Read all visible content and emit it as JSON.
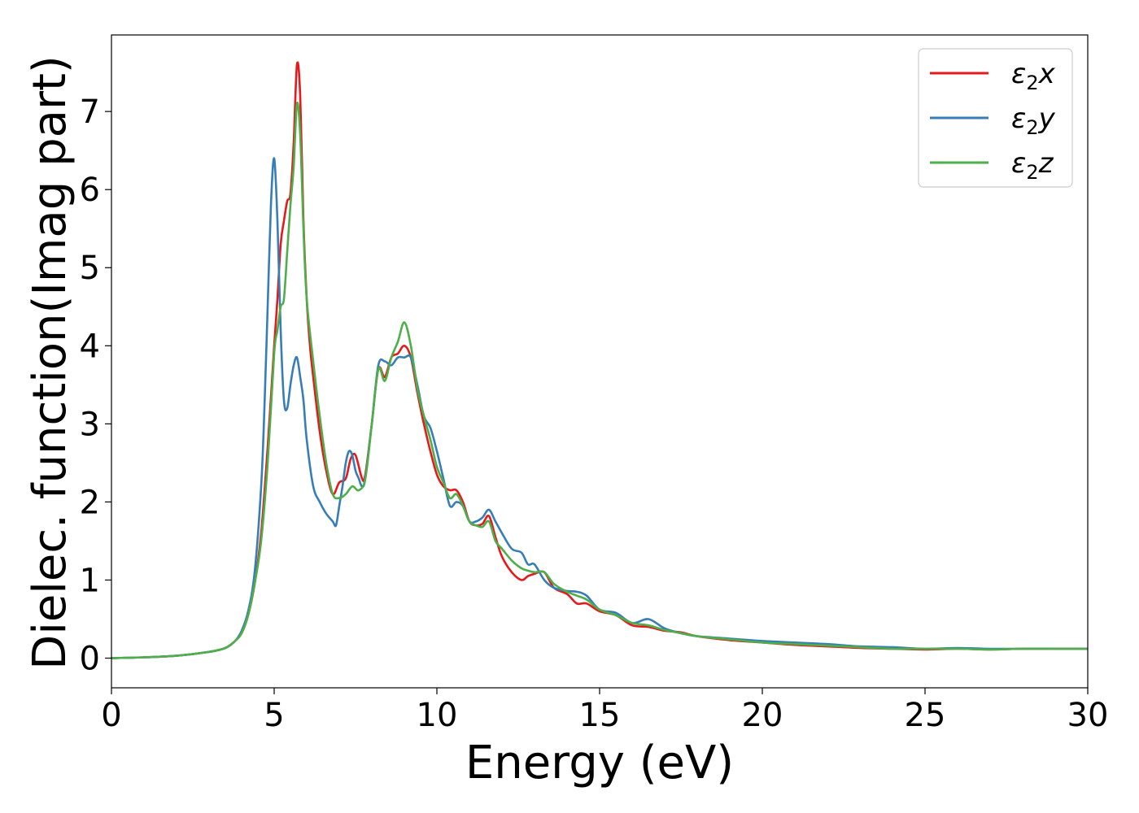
{
  "chart_data": {
    "type": "line",
    "title": "",
    "xlabel": "Energy (eV)",
    "ylabel": "Dielec. function(Imag part)",
    "xlim": [
      0,
      30
    ],
    "ylim": [
      -0.38,
      7.98
    ],
    "xticks": [
      0,
      5,
      10,
      15,
      20,
      25,
      30
    ],
    "yticks": [
      0,
      1,
      2,
      3,
      4,
      5,
      6,
      7
    ],
    "grid": false,
    "legend_position": "top-right",
    "series": [
      {
        "name": "ε2x",
        "legend": {
          "base": "ε",
          "sub": "2",
          "axis": "x"
        },
        "color": "#e41a1c",
        "x": [
          0,
          1,
          2,
          3,
          3.5,
          3.8,
          4.0,
          4.2,
          4.4,
          4.6,
          4.8,
          5.0,
          5.1,
          5.2,
          5.3,
          5.4,
          5.5,
          5.6,
          5.7,
          5.8,
          5.9,
          6.0,
          6.1,
          6.2,
          6.4,
          6.6,
          6.8,
          7.0,
          7.2,
          7.35,
          7.5,
          7.7,
          7.8,
          8.0,
          8.2,
          8.4,
          8.6,
          8.8,
          9.0,
          9.2,
          9.4,
          9.6,
          9.8,
          10.0,
          10.2,
          10.4,
          10.6,
          10.8,
          11.0,
          11.2,
          11.4,
          11.6,
          11.8,
          12.0,
          12.3,
          12.6,
          12.8,
          13.0,
          13.3,
          13.6,
          14.0,
          14.3,
          14.6,
          15.0,
          15.5,
          16.0,
          16.5,
          17.0,
          17.5,
          18,
          19,
          20,
          21,
          22,
          23,
          24,
          25,
          26,
          27,
          28,
          29,
          30
        ],
        "y": [
          0.0,
          0.01,
          0.03,
          0.08,
          0.13,
          0.22,
          0.32,
          0.55,
          0.95,
          1.6,
          2.7,
          4.0,
          4.6,
          5.3,
          5.6,
          5.85,
          5.95,
          6.6,
          7.6,
          7.2,
          5.6,
          4.6,
          4.0,
          3.6,
          2.9,
          2.4,
          2.1,
          2.25,
          2.3,
          2.55,
          2.6,
          2.3,
          2.35,
          3.0,
          3.7,
          3.6,
          3.85,
          3.9,
          4.0,
          3.85,
          3.4,
          3.0,
          2.65,
          2.35,
          2.2,
          2.15,
          2.15,
          2.0,
          1.75,
          1.7,
          1.72,
          1.82,
          1.55,
          1.3,
          1.1,
          1.0,
          1.05,
          1.08,
          1.1,
          0.9,
          0.82,
          0.7,
          0.7,
          0.6,
          0.55,
          0.42,
          0.4,
          0.35,
          0.33,
          0.28,
          0.23,
          0.2,
          0.17,
          0.15,
          0.13,
          0.12,
          0.11,
          0.12,
          0.11,
          0.12,
          0.12,
          0.12
        ]
      },
      {
        "name": "ε2y",
        "legend": {
          "base": "ε",
          "sub": "2",
          "axis": "y"
        },
        "color": "#377eb8",
        "x": [
          0,
          1,
          2,
          3,
          3.5,
          3.8,
          4.0,
          4.2,
          4.4,
          4.6,
          4.7,
          4.8,
          4.9,
          5.0,
          5.1,
          5.2,
          5.3,
          5.4,
          5.5,
          5.6,
          5.7,
          5.8,
          5.9,
          6.0,
          6.2,
          6.4,
          6.6,
          6.8,
          6.9,
          7.0,
          7.1,
          7.2,
          7.3,
          7.4,
          7.5,
          7.6,
          7.7,
          7.8,
          8.0,
          8.2,
          8.4,
          8.6,
          8.8,
          9.0,
          9.2,
          9.4,
          9.6,
          9.8,
          10.0,
          10.2,
          10.4,
          10.6,
          10.8,
          11.0,
          11.2,
          11.4,
          11.6,
          11.8,
          12.0,
          12.3,
          12.6,
          12.8,
          13.0,
          13.3,
          13.6,
          14.0,
          14.3,
          14.6,
          15.0,
          15.5,
          16.0,
          16.5,
          17.0,
          17.5,
          18,
          19,
          20,
          21,
          22,
          23,
          24,
          25,
          26,
          27,
          28,
          29,
          30
        ],
        "y": [
          0.0,
          0.01,
          0.03,
          0.08,
          0.13,
          0.22,
          0.35,
          0.6,
          1.1,
          2.2,
          3.2,
          4.5,
          5.8,
          6.4,
          5.6,
          4.2,
          3.3,
          3.2,
          3.5,
          3.75,
          3.85,
          3.6,
          3.3,
          2.8,
          2.2,
          2.0,
          1.85,
          1.75,
          1.7,
          1.95,
          2.2,
          2.5,
          2.65,
          2.6,
          2.4,
          2.3,
          2.2,
          2.3,
          3.0,
          3.75,
          3.8,
          3.75,
          3.85,
          3.85,
          3.85,
          3.5,
          3.1,
          2.95,
          2.65,
          2.3,
          1.95,
          2.0,
          1.95,
          1.75,
          1.75,
          1.8,
          1.9,
          1.75,
          1.6,
          1.4,
          1.35,
          1.2,
          1.2,
          1.0,
          0.9,
          0.86,
          0.85,
          0.8,
          0.62,
          0.58,
          0.45,
          0.5,
          0.38,
          0.32,
          0.28,
          0.25,
          0.22,
          0.2,
          0.18,
          0.15,
          0.14,
          0.12,
          0.13,
          0.12,
          0.12,
          0.12,
          0.12
        ]
      },
      {
        "name": "ε2z",
        "legend": {
          "base": "ε",
          "sub": "2",
          "axis": "z"
        },
        "color": "#4daf4a",
        "x": [
          0,
          1,
          2,
          3,
          3.5,
          3.8,
          4.0,
          4.2,
          4.4,
          4.6,
          4.8,
          5.0,
          5.1,
          5.2,
          5.3,
          5.4,
          5.5,
          5.6,
          5.7,
          5.8,
          5.9,
          6.0,
          6.2,
          6.4,
          6.6,
          6.8,
          7.0,
          7.2,
          7.4,
          7.6,
          7.8,
          8.0,
          8.2,
          8.4,
          8.6,
          8.8,
          9.0,
          9.2,
          9.4,
          9.6,
          9.8,
          10.0,
          10.2,
          10.4,
          10.6,
          10.8,
          11.0,
          11.2,
          11.4,
          11.6,
          11.8,
          12.0,
          12.3,
          12.6,
          12.8,
          13.0,
          13.3,
          13.6,
          14.0,
          14.3,
          14.6,
          15.0,
          15.5,
          16.0,
          16.5,
          17.0,
          17.5,
          18,
          19,
          20,
          21,
          22,
          23,
          24,
          25,
          26,
          27,
          28,
          29,
          30
        ],
        "y": [
          0.0,
          0.01,
          0.03,
          0.08,
          0.13,
          0.22,
          0.32,
          0.55,
          0.95,
          1.5,
          2.5,
          3.9,
          4.2,
          4.5,
          4.6,
          5.2,
          5.8,
          6.3,
          7.1,
          6.7,
          5.5,
          4.6,
          3.8,
          3.1,
          2.5,
          2.1,
          2.05,
          2.1,
          2.2,
          2.15,
          2.3,
          3.0,
          3.7,
          3.55,
          3.85,
          4.05,
          4.3,
          4.0,
          3.45,
          3.1,
          2.8,
          2.45,
          2.25,
          2.05,
          2.1,
          1.95,
          1.75,
          1.7,
          1.68,
          1.75,
          1.5,
          1.4,
          1.25,
          1.15,
          1.12,
          1.1,
          1.1,
          0.95,
          0.85,
          0.8,
          0.75,
          0.62,
          0.55,
          0.45,
          0.42,
          0.36,
          0.32,
          0.28,
          0.24,
          0.2,
          0.18,
          0.16,
          0.14,
          0.12,
          0.12,
          0.12,
          0.11,
          0.12,
          0.12,
          0.12
        ]
      }
    ]
  }
}
